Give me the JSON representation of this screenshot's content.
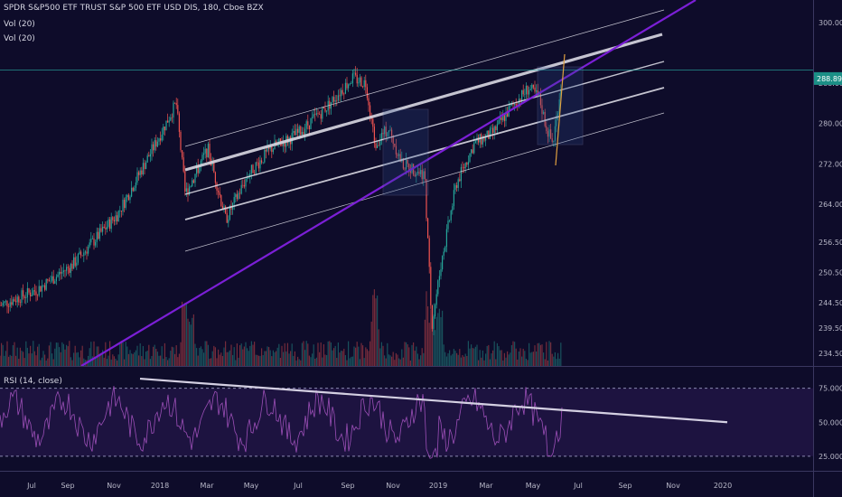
{
  "header": {
    "symbol_line": "SPDR S&P500 ETF TRUST S&P 500 ETF USD DIS, 180, Cboe BZX",
    "vol1": "Vol (20)",
    "vol2": "Vol (20)"
  },
  "rsi": {
    "label": "RSI (14, close)",
    "overbought": 75,
    "oversold": 25,
    "ticks": [
      "75.0000",
      "50.0000",
      "25.0000"
    ],
    "colors": {
      "line": "#9c4fb7",
      "band": "#2a1a52"
    }
  },
  "colors": {
    "background": "#0e0c2a",
    "candle_up": "#26a69a",
    "candle_down": "#ef5350",
    "trendline_purple": "#7b1fd6",
    "channel": "#d9d9e3",
    "price_badge": "#1b8f86"
  },
  "chart_data": {
    "type": "candlestick",
    "title": "SPDR S&P500 ETF TRUST S&P 500 ETF USD DIS, 180, Cboe BZX",
    "x_ticks": [
      "Jul",
      "Sep",
      "Nov",
      "2018",
      "Mar",
      "May",
      "Jul",
      "Sep",
      "Nov",
      "2019",
      "Mar",
      "May",
      "Jul",
      "Sep",
      "Nov",
      "2020"
    ],
    "y_ticks": [
      300.0,
      288.0,
      280.0,
      272.0,
      264.0,
      256.5,
      250.5,
      244.5,
      239.5,
      234.5
    ],
    "current_price": 288.89,
    "ylim": [
      232,
      303
    ],
    "rsi_ylim": [
      15,
      90
    ]
  }
}
